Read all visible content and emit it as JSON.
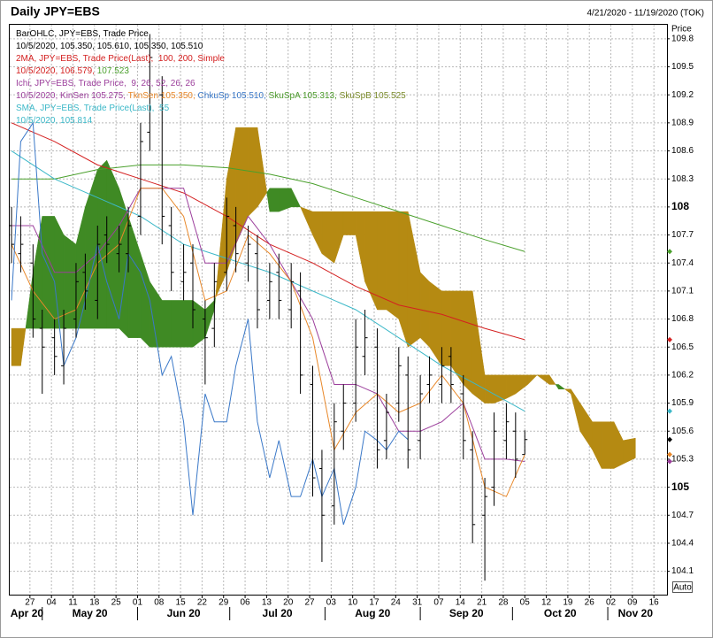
{
  "header": {
    "title": "Daily JPY=EBS",
    "range": "4/21/2020 - 11/19/2020 (TOK)"
  },
  "controls": {
    "auto": "Auto"
  },
  "chart_data": {
    "type": "ohlc",
    "y_label": "Price",
    "ylim": [
      103.85,
      109.95
    ],
    "yticks": [
      104.1,
      104.4,
      104.7,
      105,
      105.3,
      105.6,
      105.9,
      106.2,
      106.5,
      106.8,
      107.1,
      107.4,
      107.7,
      108,
      108.3,
      108.6,
      108.9,
      109.2,
      109.5,
      109.8
    ],
    "xlim": [
      "2020-04-21",
      "2020-11-19"
    ],
    "xticks": [
      {
        "value": "2020-04-27",
        "label": "27"
      },
      {
        "value": "2020-05-04",
        "label": "04"
      },
      {
        "value": "2020-05-11",
        "label": "11"
      },
      {
        "value": "2020-05-18",
        "label": "18"
      },
      {
        "value": "2020-05-25",
        "label": "25"
      },
      {
        "value": "2020-06-01",
        "label": "01"
      },
      {
        "value": "2020-06-08",
        "label": "08"
      },
      {
        "value": "2020-06-15",
        "label": "15"
      },
      {
        "value": "2020-06-22",
        "label": "22"
      },
      {
        "value": "2020-06-29",
        "label": "29"
      },
      {
        "value": "2020-07-06",
        "label": "06"
      },
      {
        "value": "2020-07-13",
        "label": "13"
      },
      {
        "value": "2020-07-20",
        "label": "20"
      },
      {
        "value": "2020-07-27",
        "label": "27"
      },
      {
        "value": "2020-08-03",
        "label": "03"
      },
      {
        "value": "2020-08-10",
        "label": "10"
      },
      {
        "value": "2020-08-17",
        "label": "17"
      },
      {
        "value": "2020-08-24",
        "label": "24"
      },
      {
        "value": "2020-08-31",
        "label": "31"
      },
      {
        "value": "2020-09-07",
        "label": "07"
      },
      {
        "value": "2020-09-14",
        "label": "14"
      },
      {
        "value": "2020-09-21",
        "label": "21"
      },
      {
        "value": "2020-09-28",
        "label": "28"
      },
      {
        "value": "2020-10-05",
        "label": "05"
      },
      {
        "value": "2020-10-12",
        "label": "12"
      },
      {
        "value": "2020-10-19",
        "label": "19"
      },
      {
        "value": "2020-10-26",
        "label": "26"
      },
      {
        "value": "2020-11-02",
        "label": "02"
      },
      {
        "value": "2020-11-09",
        "label": "09"
      },
      {
        "value": "2020-11-16",
        "label": "16"
      }
    ],
    "months": [
      {
        "value": "2020-04",
        "label": "Apr 20"
      },
      {
        "value": "2020-05",
        "label": "May 20"
      },
      {
        "value": "2020-06",
        "label": "Jun 20"
      },
      {
        "value": "2020-07",
        "label": "Jul 20"
      },
      {
        "value": "2020-08",
        "label": "Aug 20"
      },
      {
        "value": "2020-09",
        "label": "Sep 20"
      },
      {
        "value": "2020-10",
        "label": "Oct 20"
      },
      {
        "value": "2020-11",
        "label": "Nov 20"
      }
    ],
    "grid": true,
    "legend": [
      [
        {
          "text": "BarOHLC, JPY=EBS, Trade Price",
          "color": "#000000"
        }
      ],
      [
        {
          "text": "10/5/2020, 105.350, 105.610, 105.350, 105.510",
          "color": "#000000"
        }
      ],
      [
        {
          "text": "2MA, JPY=EBS, Trade Price(Last),  100, 200, Simple",
          "color": "#d42020"
        }
      ],
      [
        {
          "text": "10/5/2020, 106.579, ",
          "color": "#d42020"
        },
        {
          "text": "107.523",
          "color": "#4aa02c"
        }
      ],
      [
        {
          "text": "Ichi, JPY=EBS, Trade Price,  9, 26, 52, 26, 26",
          "color": "#9c3f9c"
        }
      ],
      [
        {
          "text": "10/5/2020, KinSen 105.275, ",
          "color": "#9c3f9c"
        },
        {
          "text": "TknSen 105.350, ",
          "color": "#e8882a"
        },
        {
          "text": "ChkuSp 105.510, ",
          "color": "#3a78c8"
        },
        {
          "text": "SkuSpA 105.313, ",
          "color": "#4a9a2a"
        },
        {
          "text": "SkuSpB 105.525",
          "color": "#7a8a2a"
        }
      ],
      [
        {
          "text": "SMA, JPY=EBS, Trade Price(Last),  55",
          "color": "#3cb8c8"
        }
      ],
      [
        {
          "text": "10/5/2020, 105.814",
          "color": "#3cb8c8"
        }
      ]
    ],
    "series": [
      {
        "type": "cloud",
        "colors": [
          "#3f8a24",
          "#b58a12"
        ],
        "x": [
          "2020-04-21",
          "2020-04-24",
          "2020-04-28",
          "2020-05-01",
          "2020-05-05",
          "2020-05-08",
          "2020-05-12",
          "2020-05-15",
          "2020-05-19",
          "2020-05-22",
          "2020-05-26",
          "2020-05-29",
          "2020-06-02",
          "2020-06-05",
          "2020-06-09",
          "2020-06-12",
          "2020-06-16",
          "2020-06-19",
          "2020-06-23",
          "2020-06-26",
          "2020-06-30",
          "2020-07-03",
          "2020-07-07",
          "2020-07-10",
          "2020-07-14",
          "2020-07-17",
          "2020-07-21",
          "2020-07-24",
          "2020-07-28",
          "2020-07-31",
          "2020-08-04",
          "2020-08-07",
          "2020-08-11",
          "2020-08-14",
          "2020-08-18",
          "2020-08-21",
          "2020-08-25",
          "2020-08-28",
          "2020-09-01",
          "2020-09-04",
          "2020-09-08",
          "2020-09-11",
          "2020-09-15",
          "2020-09-18",
          "2020-09-22",
          "2020-09-25",
          "2020-09-29",
          "2020-10-02",
          "2020-10-06",
          "2020-10-09",
          "2020-10-13",
          "2020-10-16",
          "2020-10-20",
          "2020-10-23",
          "2020-10-27",
          "2020-10-30",
          "2020-11-03",
          "2020-11-06",
          "2020-11-10"
        ],
        "span_a": [
          106.3,
          106.3,
          107.3,
          107.9,
          107.9,
          107.7,
          107.6,
          108.0,
          108.4,
          108.5,
          108.2,
          107.9,
          107.5,
          107.2,
          107.0,
          107.0,
          107.0,
          107.0,
          106.9,
          107.0,
          107.3,
          107.6,
          107.9,
          108.0,
          108.2,
          108.2,
          108.2,
          108.0,
          107.7,
          107.5,
          107.4,
          107.7,
          107.7,
          107.2,
          106.9,
          106.9,
          106.8,
          106.5,
          106.6,
          106.5,
          106.3,
          106.3,
          106.1,
          106.0,
          105.9,
          105.9,
          105.95,
          106.0,
          106.1,
          106.2,
          106.1,
          106.1,
          106.0,
          105.6,
          105.4,
          105.2,
          105.2,
          105.25,
          105.313
        ],
        "span_b": [
          106.7,
          106.7,
          106.7,
          106.7,
          106.7,
          106.7,
          106.7,
          106.7,
          106.7,
          106.7,
          106.7,
          106.6,
          106.6,
          106.5,
          106.5,
          106.5,
          106.5,
          106.5,
          106.6,
          106.9,
          108.3,
          108.85,
          108.85,
          108.85,
          107.95,
          107.95,
          108.0,
          108.0,
          107.95,
          107.95,
          107.95,
          107.95,
          107.95,
          107.95,
          107.95,
          107.95,
          107.95,
          107.95,
          107.3,
          107.2,
          107.1,
          107.1,
          107.1,
          107.1,
          106.2,
          106.2,
          106.2,
          106.2,
          106.2,
          106.2,
          106.2,
          106.05,
          106.05,
          105.9,
          105.7,
          105.7,
          105.7,
          105.5,
          105.525
        ]
      },
      {
        "type": "line",
        "color": "#4aa02c",
        "x": [
          "2020-04-21",
          "2020-05-05",
          "2020-05-19",
          "2020-06-02",
          "2020-06-16",
          "2020-06-30",
          "2020-07-14",
          "2020-07-28",
          "2020-08-11",
          "2020-08-25",
          "2020-09-08",
          "2020-09-22",
          "2020-10-05"
        ],
        "values": [
          108.3,
          108.3,
          108.4,
          108.45,
          108.45,
          108.42,
          108.35,
          108.25,
          108.1,
          107.95,
          107.8,
          107.65,
          107.523
        ]
      },
      {
        "type": "line",
        "color": "#d42020",
        "x": [
          "2020-04-21",
          "2020-05-05",
          "2020-05-19",
          "2020-06-02",
          "2020-06-16",
          "2020-06-30",
          "2020-07-14",
          "2020-07-28",
          "2020-08-11",
          "2020-08-25",
          "2020-09-08",
          "2020-09-22",
          "2020-10-05"
        ],
        "values": [
          108.9,
          108.7,
          108.45,
          108.3,
          108.15,
          107.9,
          107.6,
          107.4,
          107.15,
          106.95,
          106.85,
          106.7,
          106.579
        ]
      },
      {
        "type": "line",
        "color": "#3cb8c8",
        "x": [
          "2020-04-21",
          "2020-05-05",
          "2020-05-19",
          "2020-06-02",
          "2020-06-16",
          "2020-06-30",
          "2020-07-14",
          "2020-07-28",
          "2020-08-11",
          "2020-08-25",
          "2020-09-08",
          "2020-09-22",
          "2020-10-05"
        ],
        "values": [
          108.6,
          108.3,
          108.1,
          107.9,
          107.6,
          107.45,
          107.3,
          107.1,
          106.9,
          106.6,
          106.3,
          106.05,
          105.814
        ]
      },
      {
        "type": "line",
        "color": "#9c3f9c",
        "x": [
          "2020-04-21",
          "2020-04-28",
          "2020-05-05",
          "2020-05-12",
          "2020-05-19",
          "2020-05-26",
          "2020-06-02",
          "2020-06-09",
          "2020-06-16",
          "2020-06-23",
          "2020-06-30",
          "2020-07-07",
          "2020-07-14",
          "2020-07-21",
          "2020-07-28",
          "2020-08-04",
          "2020-08-11",
          "2020-08-18",
          "2020-08-25",
          "2020-09-01",
          "2020-09-08",
          "2020-09-15",
          "2020-09-22",
          "2020-09-29",
          "2020-10-05"
        ],
        "values": [
          107.8,
          107.8,
          107.3,
          107.3,
          107.5,
          107.8,
          108.2,
          108.2,
          108.2,
          107.4,
          107.4,
          107.9,
          107.6,
          107.2,
          106.8,
          106.1,
          106.1,
          106.0,
          105.6,
          105.6,
          105.7,
          105.9,
          105.3,
          105.3,
          105.275
        ]
      },
      {
        "type": "line",
        "color": "#e8882a",
        "x": [
          "2020-04-21",
          "2020-04-28",
          "2020-05-05",
          "2020-05-12",
          "2020-05-19",
          "2020-05-26",
          "2020-06-02",
          "2020-06-09",
          "2020-06-16",
          "2020-06-23",
          "2020-06-30",
          "2020-07-07",
          "2020-07-14",
          "2020-07-21",
          "2020-07-28",
          "2020-08-04",
          "2020-08-11",
          "2020-08-18",
          "2020-08-25",
          "2020-09-01",
          "2020-09-08",
          "2020-09-15",
          "2020-09-22",
          "2020-09-29",
          "2020-10-05"
        ],
        "values": [
          107.6,
          107.1,
          106.8,
          106.9,
          107.4,
          107.6,
          108.2,
          108.2,
          107.9,
          107.0,
          107.1,
          107.7,
          107.5,
          107.2,
          106.6,
          105.4,
          105.8,
          106.0,
          105.8,
          105.9,
          106.2,
          105.9,
          105.0,
          104.9,
          105.35
        ]
      },
      {
        "type": "line",
        "color": "#3a78c8",
        "x": [
          "2020-04-21",
          "2020-04-24",
          "2020-04-28",
          "2020-05-01",
          "2020-05-05",
          "2020-05-08",
          "2020-05-12",
          "2020-05-15",
          "2020-05-19",
          "2020-05-22",
          "2020-05-26",
          "2020-05-29",
          "2020-06-02",
          "2020-06-05",
          "2020-06-09",
          "2020-06-12",
          "2020-06-16",
          "2020-06-19",
          "2020-06-23",
          "2020-06-26",
          "2020-06-30",
          "2020-07-03",
          "2020-07-07",
          "2020-07-10",
          "2020-07-14",
          "2020-07-17",
          "2020-07-21",
          "2020-07-24",
          "2020-07-28",
          "2020-07-31",
          "2020-08-04",
          "2020-08-07",
          "2020-08-11",
          "2020-08-14",
          "2020-08-18",
          "2020-08-21",
          "2020-08-25",
          "2020-08-28"
        ],
        "values": [
          107.0,
          108.7,
          108.9,
          107.5,
          107.2,
          106.3,
          106.6,
          107.0,
          107.6,
          107.2,
          106.8,
          107.5,
          107.3,
          107.0,
          106.2,
          106.4,
          105.7,
          104.7,
          106.0,
          105.7,
          105.7,
          106.3,
          106.8,
          105.7,
          105.1,
          105.5,
          104.9,
          104.9,
          105.3,
          104.9,
          105.2,
          104.6,
          105.0,
          105.6,
          105.5,
          105.4,
          105.6,
          105.51
        ]
      },
      {
        "type": "ohlc",
        "color": "#000000",
        "x": [
          "2020-04-21",
          "2020-04-24",
          "2020-04-28",
          "2020-05-01",
          "2020-05-05",
          "2020-05-08",
          "2020-05-12",
          "2020-05-15",
          "2020-05-19",
          "2020-05-22",
          "2020-05-26",
          "2020-05-29",
          "2020-06-02",
          "2020-06-05",
          "2020-06-09",
          "2020-06-12",
          "2020-06-16",
          "2020-06-19",
          "2020-06-23",
          "2020-06-26",
          "2020-06-30",
          "2020-07-03",
          "2020-07-07",
          "2020-07-10",
          "2020-07-14",
          "2020-07-17",
          "2020-07-21",
          "2020-07-24",
          "2020-07-28",
          "2020-07-31",
          "2020-08-04",
          "2020-08-07",
          "2020-08-11",
          "2020-08-14",
          "2020-08-18",
          "2020-08-21",
          "2020-08-25",
          "2020-08-28",
          "2020-09-01",
          "2020-09-04",
          "2020-09-08",
          "2020-09-11",
          "2020-09-15",
          "2020-09-18",
          "2020-09-22",
          "2020-09-25",
          "2020-09-29",
          "2020-10-02",
          "2020-10-05"
        ],
        "open": [
          107.8,
          107.5,
          107.4,
          106.7,
          106.6,
          106.3,
          106.8,
          107.3,
          107.0,
          107.7,
          107.5,
          107.5,
          107.9,
          108.8,
          109.2,
          107.8,
          107.2,
          107.4,
          106.8,
          106.7,
          107.3,
          107.8,
          107.4,
          107.5,
          107.0,
          107.3,
          106.9,
          107.1,
          106.1,
          105.2,
          104.8,
          105.6,
          105.9,
          106.4,
          106.5,
          105.5,
          105.9,
          106.2,
          105.5,
          106.1,
          106.1,
          106.4,
          106.0,
          105.4,
          104.7,
          105.0,
          105.5,
          105.6,
          105.35
        ],
        "high": [
          108.0,
          107.9,
          107.6,
          106.9,
          106.8,
          106.9,
          107.4,
          107.5,
          107.8,
          107.9,
          107.8,
          108.0,
          108.9,
          109.85,
          109.4,
          108.0,
          107.6,
          107.6,
          107.0,
          107.4,
          108.1,
          108.0,
          107.8,
          107.7,
          107.4,
          107.5,
          107.4,
          107.3,
          106.3,
          105.4,
          105.9,
          106.1,
          106.8,
          106.9,
          106.7,
          106.0,
          106.5,
          106.4,
          106.2,
          106.4,
          106.5,
          106.5,
          106.2,
          105.6,
          105.1,
          105.8,
          105.9,
          105.8,
          105.61
        ],
        "low": [
          107.4,
          107.3,
          106.6,
          106.0,
          106.2,
          106.1,
          106.6,
          106.9,
          106.8,
          107.4,
          107.3,
          107.3,
          107.7,
          108.6,
          107.6,
          107.1,
          107.0,
          106.7,
          106.1,
          106.5,
          107.1,
          107.3,
          107.2,
          106.7,
          106.8,
          106.8,
          106.7,
          106.0,
          104.9,
          104.2,
          104.6,
          105.4,
          105.7,
          106.2,
          105.2,
          105.3,
          105.7,
          105.2,
          105.3,
          105.9,
          105.9,
          105.9,
          105.3,
          104.4,
          104.0,
          104.8,
          105.3,
          105.1,
          105.35
        ],
        "close": [
          107.6,
          107.6,
          106.8,
          106.5,
          106.4,
          106.7,
          107.2,
          107.1,
          107.6,
          107.6,
          107.6,
          107.8,
          108.7,
          109.6,
          107.9,
          107.3,
          107.3,
          106.9,
          106.6,
          107.2,
          107.9,
          107.5,
          107.6,
          106.9,
          107.2,
          107.0,
          107.2,
          106.2,
          105.1,
          104.7,
          105.7,
          105.9,
          106.5,
          106.6,
          105.4,
          105.8,
          106.3,
          105.4,
          106.0,
          106.2,
          106.3,
          106.1,
          105.5,
          104.6,
          104.9,
          105.6,
          105.7,
          105.3,
          105.51
        ]
      }
    ]
  }
}
